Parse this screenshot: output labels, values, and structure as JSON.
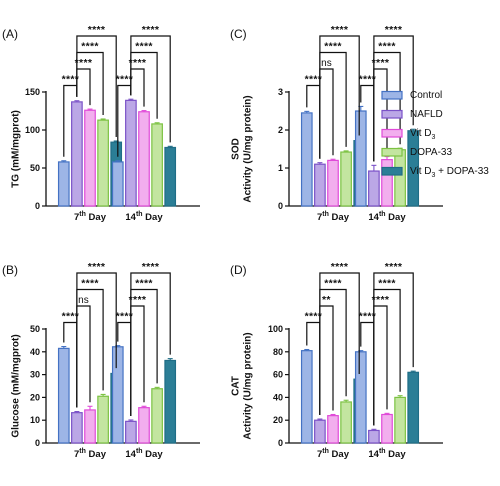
{
  "colors": {
    "series": [
      "#4472C4",
      "#7B52C8",
      "#E04AD8",
      "#7CC242",
      "#1F6D86"
    ],
    "series_fill": [
      "#9DB5E6",
      "#BBA7E6",
      "#F2AEEE",
      "#C3E5A0",
      "#2B7E96"
    ]
  },
  "legend": {
    "entries": [
      {
        "label": "Control"
      },
      {
        "label": "NAFLD"
      },
      {
        "label": "Vit D",
        "sub": "3"
      },
      {
        "label": "DOPA-33"
      },
      {
        "label": "Vit D",
        "sub": "3",
        "suffix": " + DOPA-33"
      }
    ]
  },
  "chart_data": [
    {
      "panel": "(A)",
      "type": "bar",
      "ylabel": "TG (mM/mgprot)",
      "ylim": [
        0,
        150
      ],
      "yticks": [
        0,
        50,
        100,
        150
      ],
      "categories": [
        {
          "base": "7",
          "sup": "th",
          "rest": " Day"
        },
        {
          "base": "14",
          "sup": "th",
          "rest": "  Day"
        }
      ],
      "series": [
        {
          "name": "Control",
          "values": [
            58,
            58
          ],
          "errors": [
            1.5,
            1.5
          ]
        },
        {
          "name": "NAFLD",
          "values": [
            137,
            139
          ],
          "errors": [
            1.5,
            1.5
          ]
        },
        {
          "name": "Vit D3",
          "values": [
            126,
            124
          ],
          "errors": [
            1.5,
            1.5
          ]
        },
        {
          "name": "DOPA-33",
          "values": [
            113,
            108
          ],
          "errors": [
            1.5,
            1.5
          ]
        },
        {
          "name": "Vit D3 + DOPA-33",
          "values": [
            84,
            77
          ],
          "errors": [
            1.5,
            1.5
          ]
        }
      ],
      "comparisons": [
        {
          "cat": 0,
          "a": 0,
          "b": 1,
          "label": "****"
        },
        {
          "cat": 0,
          "a": 1,
          "b": 2,
          "label": "****"
        },
        {
          "cat": 0,
          "a": 1,
          "b": 3,
          "label": "****"
        },
        {
          "cat": 0,
          "a": 1,
          "b": 4,
          "label": "****"
        },
        {
          "cat": 1,
          "a": 0,
          "b": 1,
          "label": "****"
        },
        {
          "cat": 1,
          "a": 1,
          "b": 2,
          "label": "****"
        },
        {
          "cat": 1,
          "a": 1,
          "b": 3,
          "label": "****"
        },
        {
          "cat": 1,
          "a": 1,
          "b": 4,
          "label": "****"
        }
      ]
    },
    {
      "panel": "(C)",
      "type": "bar",
      "ylabel_lines": [
        "SOD",
        "Activity (U/mg protein)"
      ],
      "ylim": [
        0,
        3
      ],
      "yticks": [
        0,
        1,
        2,
        3
      ],
      "categories": [
        {
          "base": "7",
          "sup": "th",
          "rest": " Day"
        },
        {
          "base": "14",
          "sup": "th",
          "rest": "  Day"
        }
      ],
      "series": [
        {
          "name": "Control",
          "values": [
            2.45,
            2.5
          ],
          "errors": [
            0.04,
            0.12
          ]
        },
        {
          "name": "NAFLD",
          "values": [
            1.1,
            0.92
          ],
          "errors": [
            0.04,
            0.15
          ]
        },
        {
          "name": "Vit D3",
          "values": [
            1.2,
            1.22
          ],
          "errors": [
            0.03,
            0.08
          ]
        },
        {
          "name": "DOPA-33",
          "values": [
            1.42,
            1.48
          ],
          "errors": [
            0.03,
            0.04
          ]
        },
        {
          "name": "Vit D3 + DOPA-33",
          "values": [
            1.72,
            1.98
          ],
          "errors": [
            0.03,
            0.04
          ]
        }
      ],
      "comparisons": [
        {
          "cat": 0,
          "a": 0,
          "b": 1,
          "label": "****"
        },
        {
          "cat": 0,
          "a": 1,
          "b": 2,
          "label": "ns"
        },
        {
          "cat": 0,
          "a": 1,
          "b": 3,
          "label": "****"
        },
        {
          "cat": 0,
          "a": 1,
          "b": 4,
          "label": "****"
        },
        {
          "cat": 1,
          "a": 0,
          "b": 1,
          "label": "****"
        },
        {
          "cat": 1,
          "a": 1,
          "b": 2,
          "label": "****"
        },
        {
          "cat": 1,
          "a": 1,
          "b": 3,
          "label": "****"
        },
        {
          "cat": 1,
          "a": 1,
          "b": 4,
          "label": "****"
        }
      ]
    },
    {
      "panel": "(B)",
      "type": "bar",
      "ylabel": "Glucose (mM/mgprot)",
      "ylim": [
        0,
        50
      ],
      "yticks": [
        0,
        10,
        20,
        30,
        40,
        50
      ],
      "categories": [
        {
          "base": "7",
          "sup": "th",
          "rest": " Day"
        },
        {
          "base": "14",
          "sup": "th",
          "rest": "  Day"
        }
      ],
      "series": [
        {
          "name": "Control",
          "values": [
            41.5,
            42.2
          ],
          "errors": [
            0.8,
            0.5
          ]
        },
        {
          "name": "NAFLD",
          "values": [
            13.3,
            9.5
          ],
          "errors": [
            0.5,
            0.6
          ]
        },
        {
          "name": "Vit D3",
          "values": [
            14.5,
            15.5
          ],
          "errors": [
            1.6,
            0.6
          ]
        },
        {
          "name": "DOPA-33",
          "values": [
            20.5,
            23.8
          ],
          "errors": [
            0.8,
            0.6
          ]
        },
        {
          "name": "Vit D3 + DOPA-33",
          "values": [
            30.5,
            36.2
          ],
          "errors": [
            0.6,
            0.8
          ]
        }
      ],
      "comparisons": [
        {
          "cat": 0,
          "a": 0,
          "b": 1,
          "label": "****"
        },
        {
          "cat": 0,
          "a": 1,
          "b": 2,
          "label": "ns"
        },
        {
          "cat": 0,
          "a": 1,
          "b": 3,
          "label": "****"
        },
        {
          "cat": 0,
          "a": 1,
          "b": 4,
          "label": "****"
        },
        {
          "cat": 1,
          "a": 0,
          "b": 1,
          "label": "****"
        },
        {
          "cat": 1,
          "a": 1,
          "b": 2,
          "label": "****"
        },
        {
          "cat": 1,
          "a": 1,
          "b": 3,
          "label": "****"
        },
        {
          "cat": 1,
          "a": 1,
          "b": 4,
          "label": "****"
        }
      ]
    },
    {
      "panel": "(D)",
      "type": "bar",
      "ylabel_lines": [
        "CAT",
        "Activity (U/mg protein)"
      ],
      "ylim": [
        0,
        100
      ],
      "yticks": [
        0,
        20,
        40,
        60,
        80,
        100
      ],
      "categories": [
        {
          "base": "7",
          "sup": "th",
          "rest": " Day"
        },
        {
          "base": "14",
          "sup": "th",
          "rest": "  Day"
        }
      ],
      "series": [
        {
          "name": "Control",
          "values": [
            81,
            80
          ],
          "errors": [
            1.0,
            1.0
          ]
        },
        {
          "name": "NAFLD",
          "values": [
            20,
            11
          ],
          "errors": [
            1.0,
            1.0
          ]
        },
        {
          "name": "Vit D3",
          "values": [
            24,
            25
          ],
          "errors": [
            1.0,
            1.0
          ]
        },
        {
          "name": "DOPA-33",
          "values": [
            36,
            40
          ],
          "errors": [
            1.5,
            1.5
          ]
        },
        {
          "name": "Vit D3 + DOPA-33",
          "values": [
            56,
            62
          ],
          "errors": [
            1.0,
            1.0
          ]
        }
      ],
      "comparisons": [
        {
          "cat": 0,
          "a": 0,
          "b": 1,
          "label": "****"
        },
        {
          "cat": 0,
          "a": 1,
          "b": 2,
          "label": "**"
        },
        {
          "cat": 0,
          "a": 1,
          "b": 3,
          "label": "****"
        },
        {
          "cat": 0,
          "a": 1,
          "b": 4,
          "label": "****"
        },
        {
          "cat": 1,
          "a": 0,
          "b": 1,
          "label": "****"
        },
        {
          "cat": 1,
          "a": 1,
          "b": 2,
          "label": "****"
        },
        {
          "cat": 1,
          "a": 1,
          "b": 3,
          "label": "****"
        },
        {
          "cat": 1,
          "a": 1,
          "b": 4,
          "label": "****"
        }
      ]
    }
  ]
}
